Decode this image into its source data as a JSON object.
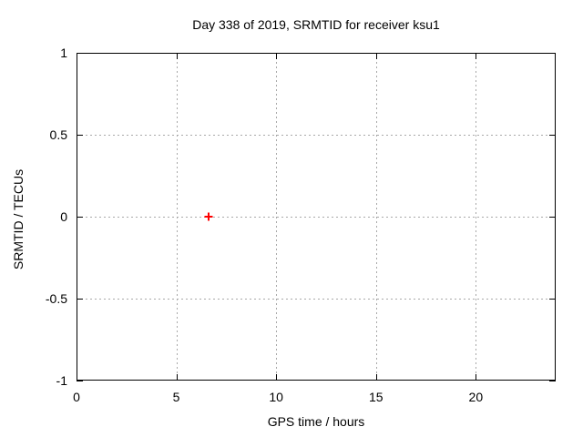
{
  "window": {
    "background": "#ffffff"
  },
  "chart_data": {
    "type": "scatter",
    "title": "Day 338 of 2019, SRMTID for receiver ksu1",
    "xlabel": "GPS time / hours",
    "ylabel": "SRMTID / TECUs",
    "xlim": [
      0,
      24
    ],
    "ylim": [
      -1,
      1
    ],
    "xticks": [
      0,
      5,
      10,
      15,
      20
    ],
    "yticks": [
      -1,
      -0.5,
      0,
      0.5,
      1
    ],
    "grid": true,
    "legend": "none",
    "series": [
      {
        "name": "",
        "marker": "plus",
        "color": "#ff0000",
        "points": [
          [
            6.6,
            0.0
          ]
        ]
      }
    ],
    "colors": {
      "axis": "#000000",
      "grid": "#a8a8a8",
      "text": "#000000",
      "marker": "#ff0000"
    }
  }
}
